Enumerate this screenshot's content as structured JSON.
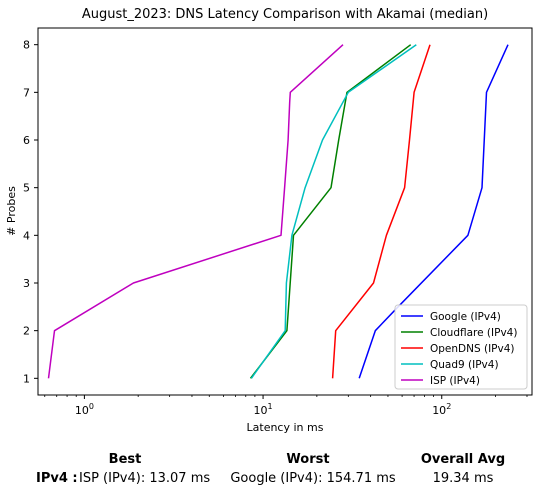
{
  "chart_data": {
    "type": "line",
    "title": "August_2023: DNS Latency Comparison with Akamai (median)",
    "xlabel": "Latency in ms",
    "ylabel": "# Probes",
    "xscale": "log",
    "xlim": [
      0.55,
      320
    ],
    "ylim": [
      0.65,
      8.35
    ],
    "x_ticks": [
      {
        "value": 1,
        "base": "10",
        "exp": "0"
      },
      {
        "value": 10,
        "base": "10",
        "exp": "1"
      },
      {
        "value": 100,
        "base": "10",
        "exp": "2"
      }
    ],
    "y_ticks": [
      "1",
      "2",
      "3",
      "4",
      "5",
      "6",
      "7",
      "8"
    ],
    "grid": false,
    "legend_position": "lower-right",
    "series": [
      {
        "name": "Google (IPv4)",
        "color": "#0000ff",
        "x": [
          34.5,
          42.5,
          57,
          140,
          168,
          178,
          235
        ],
        "y": [
          1,
          2,
          2.5,
          4,
          5,
          7,
          8
        ]
      },
      {
        "name": "Cloudflare (IPv4)",
        "color": "#008000",
        "x": [
          8.5,
          13.6,
          14.8,
          24,
          26.5,
          29.5,
          67
        ],
        "y": [
          1,
          2,
          4,
          5,
          6,
          7,
          8
        ]
      },
      {
        "name": "OpenDNS (IPv4)",
        "color": "#ff0000",
        "x": [
          24.5,
          25.5,
          41.5,
          49,
          62,
          66,
          70,
          86
        ],
        "y": [
          1,
          2,
          3,
          4,
          5,
          6,
          7,
          8
        ]
      },
      {
        "name": "Quad9 (IPv4)",
        "color": "#00bfbf",
        "x": [
          8.6,
          13.3,
          13.5,
          14.5,
          17.2,
          21.5,
          30,
          72
        ],
        "y": [
          1,
          2,
          3,
          4,
          5,
          6,
          7,
          8
        ]
      },
      {
        "name": "ISP (IPv4)",
        "color": "#bf00bf",
        "x": [
          0.63,
          0.68,
          1.88,
          12.6,
          13.2,
          13.8,
          14.1,
          14.2,
          28
        ],
        "y": [
          1,
          2,
          3,
          4,
          5,
          6,
          6.8,
          7,
          8
        ]
      }
    ]
  },
  "summary": {
    "best_label": "Best",
    "worst_label": "Worst",
    "avg_label": "Overall Avg",
    "row_label": "IPv4 :",
    "best_value": "ISP (IPv4): 13.07 ms",
    "worst_value": "Google (IPv4): 154.71 ms",
    "avg_value": "19.34 ms"
  }
}
